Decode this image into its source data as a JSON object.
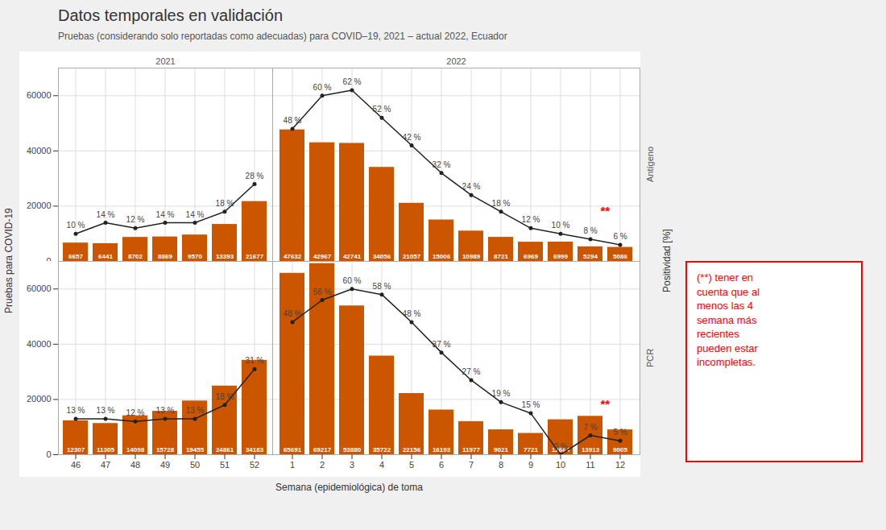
{
  "chart_data": {
    "type": "bar",
    "title": "Datos temporales en validación",
    "subtitle": "Pruebas (considerando solo reportadas como adecuadas) para COVID–19, 2021 – actual 2022, Ecuador",
    "xlabel": "Semana (epidemiológica) de toma",
    "ylabel": "Pruebas para COVID-19",
    "y2label": "Positividad [%]",
    "ylim": [
      0,
      70000
    ],
    "yticks": [
      0,
      20000,
      40000,
      60000
    ],
    "y2lim": [
      0,
      70
    ],
    "grid": true,
    "note": {
      "text": "(**) tener en\ncuenta que al\nmenos las 4\nsemana más\nrecientes\npueden estar\nincompletas.",
      "color": "red"
    },
    "panels": [
      {
        "column_label": "2021",
        "tick_labels": "y",
        "categories": [
          46,
          47,
          48,
          49,
          50,
          51,
          52
        ],
        "series": [
          {
            "type": "bar",
            "color": "#CC5500",
            "data_labels": true,
            "values": [
              6657,
              6441,
              8702,
              8869,
              9570,
              13393,
              21677
            ]
          },
          {
            "type": "line",
            "axis": "y2",
            "color": "#222222",
            "marker": "circle",
            "values": [
              10,
              14,
              12,
              14,
              14,
              18,
              28
            ],
            "value_labels": [
              "10 %",
              "14 %",
              "12 %",
              "14 %",
              "14 %",
              "18 %",
              "28 %"
            ]
          }
        ]
      },
      {
        "column_label": "2022",
        "row_label": "Antígeno",
        "tick_labels": false,
        "categories": [
          1,
          2,
          3,
          4,
          5,
          6,
          7,
          8,
          9,
          10,
          11,
          12
        ],
        "annotations": [
          {
            "text": "**",
            "color": "red"
          }
        ],
        "series": [
          {
            "type": "bar",
            "color": "#CC5500",
            "data_labels": true,
            "values": [
              47632,
              42967,
              42741,
              34056,
              21057,
              15006,
              10989,
              8721,
              6969,
              6999,
              5294,
              5086
            ]
          },
          {
            "type": "line",
            "axis": "y2",
            "color": "#222222",
            "marker": "circle",
            "values": [
              48,
              60,
              62,
              52,
              42,
              32,
              24,
              18,
              12,
              10,
              8,
              6
            ],
            "value_labels": [
              "48 %",
              "60 %",
              "62 %",
              "52 %",
              "42 %",
              "32 %",
              "24 %",
              "18 %",
              "12 %",
              "10 %",
              "8 %",
              "6 %"
            ]
          }
        ]
      },
      {
        "tick_labels": true,
        "categories": [
          46,
          47,
          48,
          49,
          50,
          51,
          52
        ],
        "series": [
          {
            "type": "bar",
            "color": "#CC5500",
            "data_labels": true,
            "values": [
              12307,
              11305,
              14098,
              15728,
              19455,
              24861,
              34183
            ]
          },
          {
            "type": "line",
            "axis": "y2",
            "color": "#222222",
            "marker": "circle",
            "values": [
              13,
              13,
              12,
              13,
              13,
              18,
              31
            ],
            "value_labels": [
              "13 %",
              "13 %",
              "12 %",
              "13 %",
              "13 %",
              "18 %",
              "31 %"
            ]
          }
        ]
      },
      {
        "row_label": "PCR",
        "tick_labels": "x",
        "categories": [
          1,
          2,
          3,
          4,
          5,
          6,
          7,
          8,
          9,
          10,
          11,
          12
        ],
        "annotations": [
          {
            "text": "**",
            "color": "red"
          }
        ],
        "series": [
          {
            "type": "bar",
            "color": "#CC5500",
            "data_labels": true,
            "values": [
              65691,
              69217,
              53880,
              35722,
              22156,
              16193,
              11977,
              9021,
              7721,
              12664,
              13913,
              9005
            ]
          },
          {
            "type": "line",
            "axis": "y2",
            "color": "#222222",
            "marker": "circle",
            "values": [
              48,
              56,
              60,
              58,
              48,
              37,
              27,
              19,
              15,
              0,
              7,
              5
            ],
            "value_labels": [
              "48 %",
              "56 %",
              "60 %",
              "58 %",
              "48 %",
              "37 %",
              "27 %",
              "19 %",
              "15 %",
              "0 %",
              "7 %",
              "5 %"
            ]
          }
        ]
      }
    ]
  }
}
